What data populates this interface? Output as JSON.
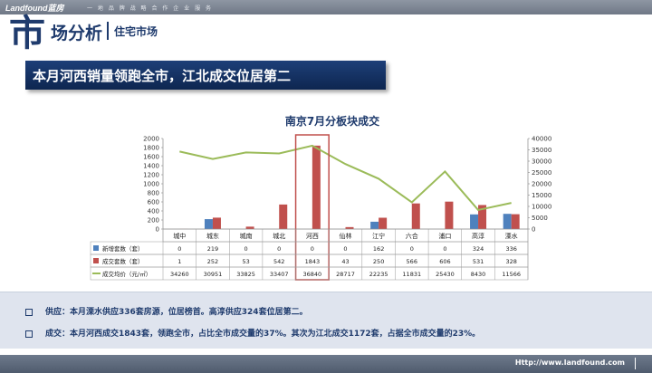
{
  "header": {
    "logo_text": "Landfound蓝房",
    "slogan": "一 地 品 牌 战 略 合 作 企 业 服 务",
    "big_char": "市",
    "title": "场分析",
    "subtitle": "住宅市场"
  },
  "banner": {
    "text": "本月河西销量领跑全市，江北成交位居第二"
  },
  "notes": [
    "供应：本月溧水供应336套房源，位居榜首。高淳供应324套位居第二。",
    "成交：本月河西成交1843套，领跑全市，占比全市成交量的37%。其次为江北成交1172套，占据全市成交量的23%。"
  ],
  "footer": {
    "url": "Http://www.landfound.com"
  },
  "colors": {
    "supply": "#4f81bd",
    "deal": "#c0504d",
    "price": "#9bbb59",
    "highlight": "#c0504d",
    "navy": "#1f3b6d"
  },
  "chart_data": {
    "type": "bar",
    "title": "南京7月分板块成交",
    "categories": [
      "城中",
      "城东",
      "城南",
      "城北",
      "河西",
      "仙林",
      "江宁",
      "六合",
      "浦口",
      "高淳",
      "溧水"
    ],
    "series": [
      {
        "name": "新增套数（套）",
        "type": "bar",
        "axis": "left",
        "values": [
          0,
          219,
          0,
          0,
          0,
          0,
          162,
          0,
          0,
          324,
          336
        ]
      },
      {
        "name": "成交套数（套）",
        "type": "bar",
        "axis": "left",
        "values": [
          1,
          252,
          53,
          542,
          1843,
          43,
          250,
          566,
          606,
          531,
          328
        ]
      },
      {
        "name": "成交均价（元/㎡）",
        "type": "line",
        "axis": "right",
        "values": [
          34260,
          30951,
          33825,
          33407,
          36840,
          28717,
          22235,
          11831,
          25430,
          8430,
          11566
        ]
      }
    ],
    "table_rows": [
      [
        "0",
        "219",
        "0",
        "0",
        "0",
        "0",
        "162",
        "0",
        "0",
        "324",
        "336"
      ],
      [
        "1",
        "252",
        "53",
        "542",
        "1843",
        "43",
        "250",
        "566",
        "606",
        "531",
        "328"
      ],
      [
        "34260",
        "30951",
        "33825",
        "33407",
        "36840",
        "28717",
        "22235",
        "11831",
        "25430",
        "8430",
        "11566"
      ]
    ],
    "left_ticks": [
      "2000",
      "1800",
      "1600",
      "1400",
      "1200",
      "1000",
      "800",
      "600",
      "400",
      "200",
      "0"
    ],
    "right_ticks": [
      "40000",
      "35000",
      "30000",
      "25000",
      "20000",
      "15000",
      "10000",
      "5000",
      "0"
    ],
    "ylim_left": [
      0,
      2000
    ],
    "ylim_right": [
      0,
      40000
    ],
    "highlight_category": "河西"
  }
}
